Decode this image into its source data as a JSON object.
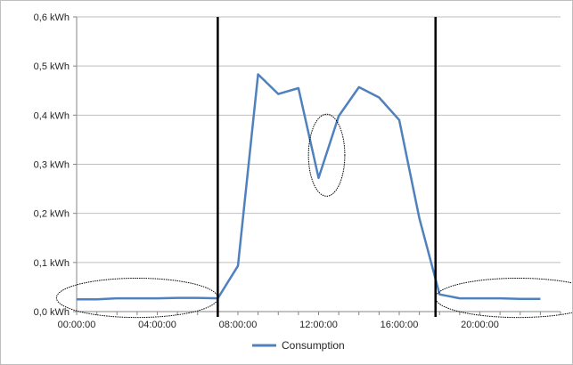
{
  "chart_data": {
    "type": "line",
    "ylim": [
      0,
      0.6
    ],
    "y_ticks": [
      {
        "value": 0.0,
        "label": "0,0 kWh"
      },
      {
        "value": 0.1,
        "label": "0,1 kWh"
      },
      {
        "value": 0.2,
        "label": "0,2 kWh"
      },
      {
        "value": 0.3,
        "label": "0,3 kWh"
      },
      {
        "value": 0.4,
        "label": "0,4 kWh"
      },
      {
        "value": 0.5,
        "label": "0,5 kWh"
      },
      {
        "value": 0.6,
        "label": "0,6 kWh"
      }
    ],
    "xlim": [
      0,
      24
    ],
    "x_ticks": [
      {
        "value": 0,
        "label": "00:00:00"
      },
      {
        "value": 4,
        "label": "04:00:00"
      },
      {
        "value": 8,
        "label": "08:00:00"
      },
      {
        "value": 12,
        "label": "12:00:00"
      },
      {
        "value": 16,
        "label": "16:00:00"
      },
      {
        "value": 20,
        "label": "20:00:00"
      }
    ],
    "grid": "horizontal",
    "legend_position": "bottom",
    "series": [
      {
        "name": "Consumption",
        "color": "#4f81bd",
        "x": [
          0,
          1,
          2,
          3,
          4,
          5,
          6,
          7,
          8,
          9,
          10,
          11,
          12,
          13,
          14,
          15,
          16,
          17,
          18,
          19,
          20,
          21,
          22,
          23
        ],
        "y": [
          0.025,
          0.025,
          0.027,
          0.027,
          0.027,
          0.028,
          0.028,
          0.027,
          0.093,
          0.483,
          0.443,
          0.455,
          0.272,
          0.398,
          0.457,
          0.436,
          0.39,
          0.19,
          0.035,
          0.027,
          0.027,
          0.027,
          0.026,
          0.026
        ]
      }
    ],
    "annotations": [
      {
        "type": "vertical-line",
        "x": 7.0,
        "color": "#000000"
      },
      {
        "type": "vertical-line",
        "x": 17.8,
        "color": "#000000"
      },
      {
        "type": "ellipse",
        "x_range": [
          -1.0,
          7.0
        ],
        "y_range": [
          -0.012,
          0.068
        ],
        "color": "#000000"
      },
      {
        "type": "ellipse",
        "x_range": [
          11.5,
          13.3
        ],
        "y_range": [
          0.235,
          0.402
        ],
        "color": "#000000"
      },
      {
        "type": "ellipse",
        "x_range": [
          17.8,
          26.0
        ],
        "y_range": [
          -0.012,
          0.068
        ],
        "color": "#000000"
      }
    ]
  }
}
